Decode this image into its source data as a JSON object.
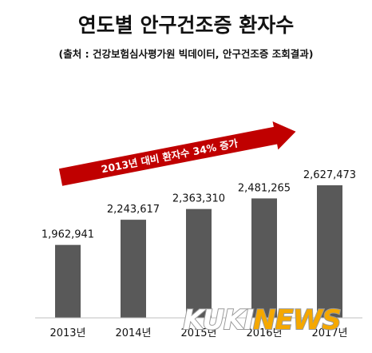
{
  "chart_data": {
    "type": "bar",
    "title": "연도별 안구건조증 환자수",
    "subtitle": "(출처 : 건강보험심사평가원 빅데이터, 안구건조증 조회결과)",
    "categories": [
      "2013년",
      "2014년",
      "2015년",
      "2016년",
      "2017년"
    ],
    "values": [
      1962941,
      2243617,
      2363310,
      2481265,
      2627473
    ],
    "value_labels": [
      "1,962,941",
      "2,243,617",
      "2,363,310",
      "2,481,265",
      "2,627,473"
    ],
    "ylim": [
      1000000,
      2800000
    ],
    "annotation": "2013년 대비 환자수 34% 증가",
    "bar_color": "#595959",
    "arrow_color": "#c00000",
    "grid": false,
    "legend": "none"
  },
  "watermark": {
    "text_part1": "KUKI",
    "text_part2": "NEWS",
    "color_main": "#ffffff",
    "color_accent": "#f5a800"
  }
}
